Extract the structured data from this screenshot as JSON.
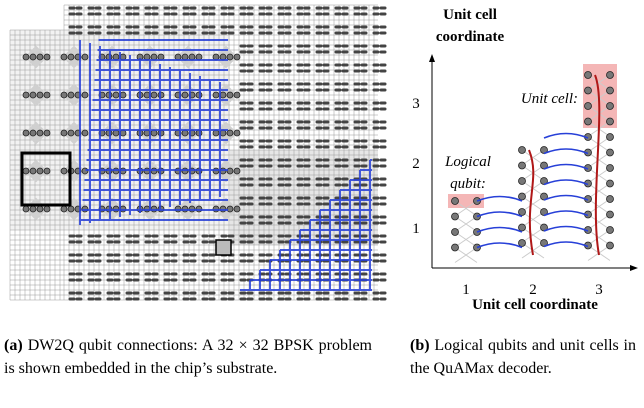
{
  "panel_a": {
    "caption_label": "(a)",
    "caption": "DW2Q qubit connections: A 32 × 32 BPSK problem is shown embedded in the chip’s substrate."
  },
  "panel_b": {
    "y_axis_title": [
      "Unit cell",
      "coordinate"
    ],
    "x_axis_title": "Unit cell coordinate",
    "x_ticks": [
      "1",
      "2",
      "3"
    ],
    "y_ticks": [
      "1",
      "2",
      "3"
    ],
    "annotations": {
      "unit_cell": "Unit cell:",
      "logical_qubit": [
        "Logical",
        "qubit:"
      ]
    },
    "caption_label": "(b)",
    "caption": "Logical qubits and unit cells in the QuAMax decoder."
  }
}
